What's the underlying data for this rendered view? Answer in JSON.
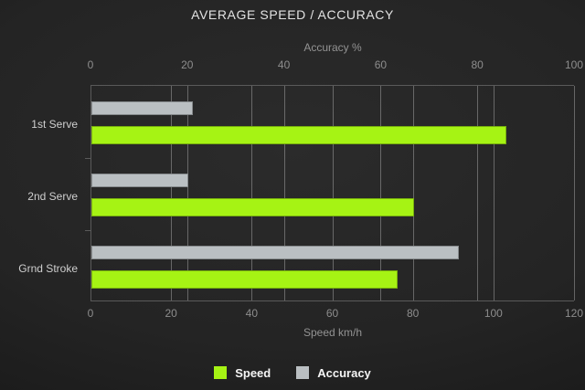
{
  "title": "AVERAGE SPEED / ACCURACY",
  "chart_data": {
    "type": "bar",
    "orientation": "horizontal",
    "title": "AVERAGE SPEED / ACCURACY",
    "categories": [
      "1st Serve",
      "2nd Serve",
      "Grnd Stroke"
    ],
    "series": [
      {
        "name": "Accuracy",
        "axis": "top",
        "color": "#babfc2",
        "values": [
          21,
          20,
          76
        ]
      },
      {
        "name": "Speed",
        "axis": "bottom",
        "color": "#a6f314",
        "values": [
          103,
          80,
          76
        ]
      }
    ],
    "top_axis": {
      "title": "Accuracy %",
      "min": 0,
      "max": 100,
      "ticks": [
        0,
        20,
        40,
        60,
        80,
        100
      ]
    },
    "bottom_axis": {
      "title": "Speed km/h",
      "min": 0,
      "max": 120,
      "ticks": [
        0,
        20,
        40,
        60,
        80,
        100,
        120
      ]
    },
    "grid": true,
    "legend_position": "bottom",
    "legend_order": [
      "Speed",
      "Accuracy"
    ]
  },
  "colors": {
    "speed_bar": "#a6f314",
    "accuracy_bar": "#babfc2",
    "background_center": "#2b2b2b",
    "background_edge": "#0a0a0a",
    "gridline": "rgba(255,255,255,0.30)",
    "axis_line": "#5a5a5a",
    "tick_label": "#8d8d8d",
    "axis_title": "#939393",
    "category_label": "#cfcfcf",
    "title_text": "#e2e2e2",
    "legend_text": "#f5f5f5"
  }
}
